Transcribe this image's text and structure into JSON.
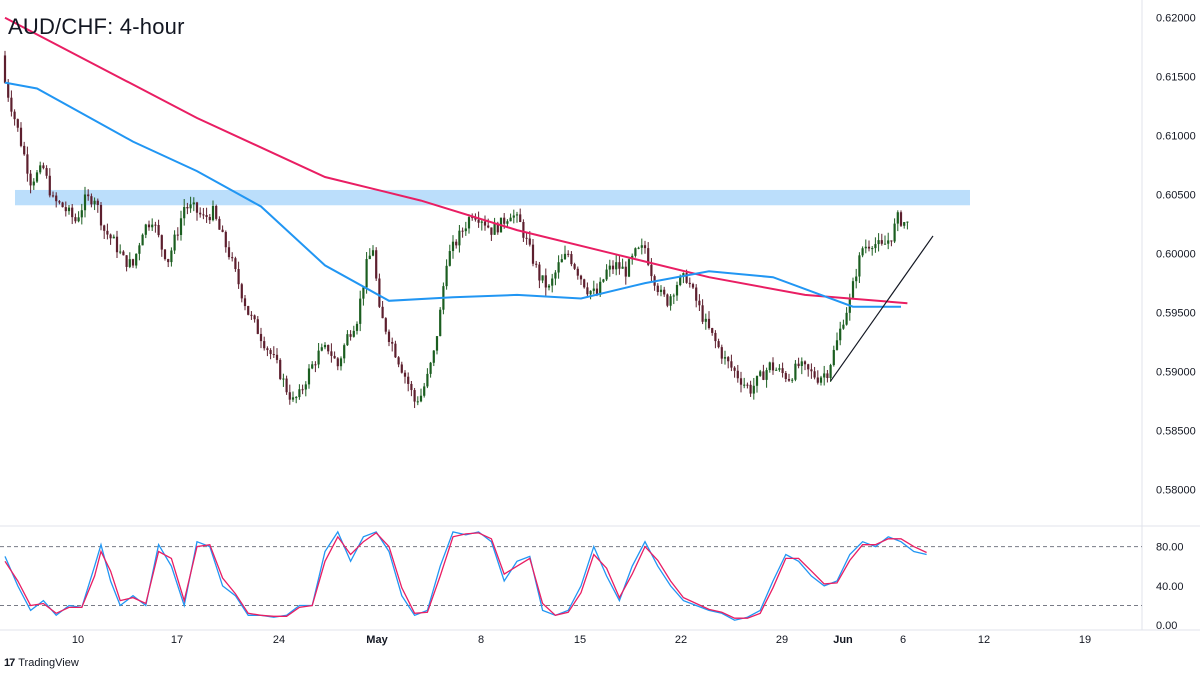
{
  "chart_title": "AUD/CHF: 4-hour",
  "brand": "TradingView",
  "brand_logo": "17",
  "chart_data": [
    {
      "type": "candlestick",
      "title": "AUD/CHF: 4-hour",
      "ylim": [
        0.577,
        0.6215
      ],
      "price_ticks": [
        "0.62000",
        "0.61500",
        "0.61000",
        "0.60500",
        "0.60000",
        "0.59500",
        "0.59000",
        "0.58500",
        "0.58000"
      ],
      "price_tick_values": [
        0.62,
        0.615,
        0.61,
        0.605,
        0.6,
        0.595,
        0.59,
        0.585,
        0.58
      ],
      "date_ticks": [
        "10",
        "17",
        "24",
        "May",
        "8",
        "15",
        "22",
        "29",
        "Jun",
        "6",
        "12",
        "19"
      ],
      "close_path": [
        [
          0,
          0.6145
        ],
        [
          4,
          0.6105
        ],
        [
          8,
          0.6062
        ],
        [
          12,
          0.6072
        ],
        [
          15,
          0.6045
        ],
        [
          18,
          0.604
        ],
        [
          22,
          0.6028
        ],
        [
          25,
          0.6045
        ],
        [
          28,
          0.6048
        ],
        [
          31,
          0.602
        ],
        [
          34,
          0.601
        ],
        [
          37,
          0.5995
        ],
        [
          40,
          0.599
        ],
        [
          43,
          0.602
        ],
        [
          46,
          0.603
        ],
        [
          49,
          0.6005
        ],
        [
          51,
          0.5995
        ],
        [
          54,
          0.602
        ],
        [
          56,
          0.604
        ],
        [
          59,
          0.6038
        ],
        [
          62,
          0.603
        ],
        [
          65,
          0.6035
        ],
        [
          67,
          0.602
        ],
        [
          70,
          0.6
        ],
        [
          73,
          0.5975
        ],
        [
          76,
          0.595
        ],
        [
          79,
          0.5935
        ],
        [
          82,
          0.592
        ],
        [
          85,
          0.5905
        ],
        [
          88,
          0.5885
        ],
        [
          90,
          0.5875
        ],
        [
          92,
          0.588
        ],
        [
          95,
          0.59
        ],
        [
          98,
          0.5915
        ],
        [
          101,
          0.592
        ],
        [
          104,
          0.5905
        ],
        [
          107,
          0.593
        ],
        [
          110,
          0.5945
        ],
        [
          113,
          0.599
        ],
        [
          115,
          0.6005
        ],
        [
          117,
          0.595
        ],
        [
          120,
          0.593
        ],
        [
          123,
          0.591
        ],
        [
          126,
          0.589
        ],
        [
          128,
          0.5875
        ],
        [
          130,
          0.588
        ],
        [
          132,
          0.5895
        ],
        [
          134,
          0.5915
        ],
        [
          136,
          0.595
        ],
        [
          138,
          0.5995
        ],
        [
          140,
          0.6005
        ],
        [
          143,
          0.602
        ],
        [
          146,
          0.6035
        ],
        [
          149,
          0.603
        ],
        [
          152,
          0.602
        ],
        [
          155,
          0.6025
        ],
        [
          158,
          0.6035
        ],
        [
          161,
          0.6025
        ],
        [
          163,
          0.601
        ],
        [
          165,
          0.5995
        ],
        [
          167,
          0.598
        ],
        [
          170,
          0.597
        ],
        [
          173,
          0.599
        ],
        [
          176,
          0.6
        ],
        [
          179,
          0.5985
        ],
        [
          182,
          0.597
        ],
        [
          185,
          0.5965
        ],
        [
          188,
          0.5985
        ],
        [
          191,
          0.599
        ],
        [
          194,
          0.5985
        ],
        [
          197,
          0.6
        ],
        [
          200,
          0.6005
        ],
        [
          202,
          0.5985
        ],
        [
          205,
          0.5965
        ],
        [
          207,
          0.596
        ],
        [
          210,
          0.5975
        ],
        [
          213,
          0.598
        ],
        [
          216,
          0.596
        ],
        [
          219,
          0.594
        ],
        [
          222,
          0.5925
        ],
        [
          225,
          0.591
        ],
        [
          228,
          0.59
        ],
        [
          231,
          0.589
        ],
        [
          233,
          0.5885
        ],
        [
          236,
          0.5895
        ],
        [
          239,
          0.5905
        ],
        [
          242,
          0.59
        ],
        [
          245,
          0.5895
        ],
        [
          248,
          0.5905
        ],
        [
          251,
          0.59
        ],
        [
          254,
          0.5895
        ],
        [
          257,
          0.59
        ],
        [
          260,
          0.5925
        ],
        [
          262,
          0.5945
        ],
        [
          264,
          0.596
        ],
        [
          266,
          0.5985
        ],
        [
          268,
          0.6005
        ],
        [
          271,
          0.601
        ],
        [
          274,
          0.6005
        ],
        [
          277,
          0.6015
        ],
        [
          279,
          0.603
        ],
        [
          282,
          0.6025
        ]
      ],
      "series": [
        {
          "name": "",
          "color": "#e91e63",
          "values": [
            [
              0,
              0.62
            ],
            [
              60,
              0.6115
            ],
            [
              100,
              0.6065
            ],
            [
              130,
              0.6045
            ],
            [
              160,
              0.602
            ],
            [
              190,
              0.6
            ],
            [
              220,
              0.598
            ],
            [
              250,
              0.5965
            ],
            [
              282,
              0.5958
            ]
          ]
        },
        {
          "name": "",
          "color": "#2196f3",
          "values": [
            [
              0,
              0.6145
            ],
            [
              10,
              0.614
            ],
            [
              40,
              0.6095
            ],
            [
              60,
              0.607
            ],
            [
              80,
              0.604
            ],
            [
              100,
              0.599
            ],
            [
              120,
              0.596
            ],
            [
              140,
              0.5963
            ],
            [
              160,
              0.5965
            ],
            [
              180,
              0.5962
            ],
            [
              200,
              0.5975
            ],
            [
              220,
              0.5985
            ],
            [
              240,
              0.598
            ],
            [
              255,
              0.5965
            ],
            [
              265,
              0.5955
            ],
            [
              280,
              0.5955
            ]
          ]
        }
      ],
      "resistance_zone": {
        "low": 0.6041,
        "high": 0.6054,
        "color": "#bbdefb"
      },
      "trendline": {
        "from": [
          258,
          0.5892
        ],
        "to": [
          290,
          0.6015
        ],
        "color": "#131722"
      }
    },
    {
      "type": "line",
      "ylim": [
        -5,
        100
      ],
      "tick_labels": [
        "80.00",
        "40.00",
        "0.00"
      ],
      "tick_values": [
        80,
        40,
        0
      ],
      "levels": [
        80,
        20
      ],
      "series": [
        {
          "name": "",
          "color": "#2196f3",
          "values": [
            [
              0,
              70
            ],
            [
              4,
              40
            ],
            [
              8,
              15
            ],
            [
              12,
              25
            ],
            [
              16,
              10
            ],
            [
              20,
              20
            ],
            [
              24,
              18
            ],
            [
              28,
              60
            ],
            [
              30,
              82
            ],
            [
              33,
              45
            ],
            [
              36,
              20
            ],
            [
              40,
              30
            ],
            [
              44,
              20
            ],
            [
              48,
              82
            ],
            [
              52,
              60
            ],
            [
              56,
              20
            ],
            [
              60,
              85
            ],
            [
              64,
              80
            ],
            [
              68,
              40
            ],
            [
              72,
              30
            ],
            [
              76,
              10
            ],
            [
              80,
              10
            ],
            [
              84,
              8
            ],
            [
              88,
              10
            ],
            [
              92,
              20
            ],
            [
              96,
              20
            ],
            [
              100,
              75
            ],
            [
              104,
              95
            ],
            [
              108,
              65
            ],
            [
              112,
              90
            ],
            [
              116,
              95
            ],
            [
              120,
              75
            ],
            [
              124,
              30
            ],
            [
              128,
              10
            ],
            [
              132,
              15
            ],
            [
              136,
              60
            ],
            [
              140,
              95
            ],
            [
              144,
              92
            ],
            [
              148,
              95
            ],
            [
              152,
              85
            ],
            [
              156,
              45
            ],
            [
              160,
              65
            ],
            [
              164,
              70
            ],
            [
              168,
              15
            ],
            [
              172,
              10
            ],
            [
              176,
              15
            ],
            [
              180,
              40
            ],
            [
              184,
              80
            ],
            [
              188,
              50
            ],
            [
              192,
              25
            ],
            [
              196,
              60
            ],
            [
              200,
              85
            ],
            [
              204,
              60
            ],
            [
              208,
              40
            ],
            [
              212,
              25
            ],
            [
              216,
              20
            ],
            [
              220,
              15
            ],
            [
              224,
              12
            ],
            [
              228,
              5
            ],
            [
              232,
              8
            ],
            [
              236,
              15
            ],
            [
              240,
              45
            ],
            [
              244,
              72
            ],
            [
              248,
              65
            ],
            [
              252,
              50
            ],
            [
              256,
              40
            ],
            [
              260,
              45
            ],
            [
              264,
              72
            ],
            [
              268,
              85
            ],
            [
              272,
              80
            ],
            [
              276,
              90
            ],
            [
              280,
              85
            ],
            [
              284,
              75
            ],
            [
              288,
              72
            ]
          ]
        },
        {
          "name": "",
          "color": "#e91e63",
          "values": [
            [
              0,
              65
            ],
            [
              4,
              45
            ],
            [
              8,
              20
            ],
            [
              12,
              22
            ],
            [
              16,
              12
            ],
            [
              20,
              18
            ],
            [
              24,
              18
            ],
            [
              28,
              50
            ],
            [
              30,
              75
            ],
            [
              33,
              55
            ],
            [
              36,
              25
            ],
            [
              40,
              28
            ],
            [
              44,
              22
            ],
            [
              48,
              75
            ],
            [
              52,
              68
            ],
            [
              56,
              25
            ],
            [
              60,
              80
            ],
            [
              64,
              82
            ],
            [
              68,
              48
            ],
            [
              72,
              32
            ],
            [
              76,
              12
            ],
            [
              80,
              10
            ],
            [
              84,
              9
            ],
            [
              88,
              9
            ],
            [
              92,
              18
            ],
            [
              96,
              20
            ],
            [
              100,
              65
            ],
            [
              104,
              90
            ],
            [
              108,
              72
            ],
            [
              112,
              85
            ],
            [
              116,
              94
            ],
            [
              120,
              80
            ],
            [
              124,
              38
            ],
            [
              128,
              12
            ],
            [
              132,
              13
            ],
            [
              136,
              50
            ],
            [
              140,
              90
            ],
            [
              144,
              93
            ],
            [
              148,
              94
            ],
            [
              152,
              88
            ],
            [
              156,
              52
            ],
            [
              160,
              60
            ],
            [
              164,
              68
            ],
            [
              168,
              22
            ],
            [
              172,
              10
            ],
            [
              176,
              13
            ],
            [
              180,
              33
            ],
            [
              184,
              72
            ],
            [
              188,
              58
            ],
            [
              192,
              28
            ],
            [
              196,
              52
            ],
            [
              200,
              80
            ],
            [
              204,
              66
            ],
            [
              208,
              45
            ],
            [
              212,
              28
            ],
            [
              216,
              22
            ],
            [
              220,
              16
            ],
            [
              224,
              13
            ],
            [
              228,
              7
            ],
            [
              232,
              7
            ],
            [
              236,
              12
            ],
            [
              240,
              38
            ],
            [
              244,
              68
            ],
            [
              248,
              68
            ],
            [
              252,
              55
            ],
            [
              256,
              42
            ],
            [
              260,
              43
            ],
            [
              264,
              66
            ],
            [
              268,
              82
            ],
            [
              272,
              82
            ],
            [
              276,
              88
            ],
            [
              280,
              88
            ],
            [
              284,
              80
            ],
            [
              288,
              74
            ]
          ]
        }
      ]
    }
  ]
}
